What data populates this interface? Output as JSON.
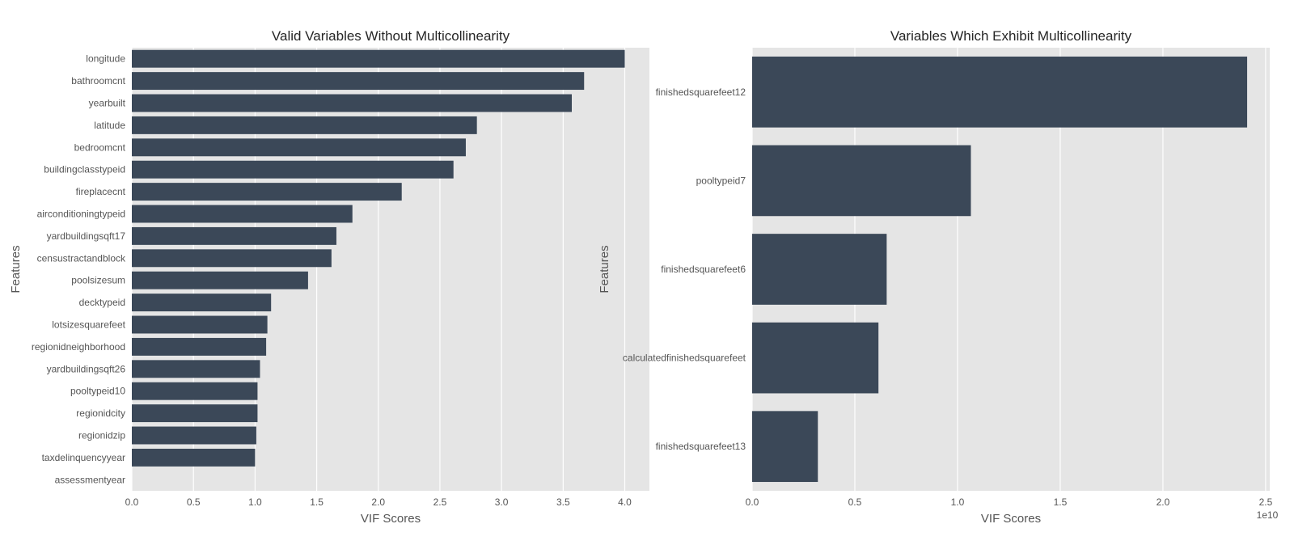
{
  "chart_data": [
    {
      "type": "bar",
      "orientation": "horizontal",
      "title": "Valid Variables Without Multicollinearity",
      "xlabel": "VIF Scores",
      "ylabel": "Features",
      "xlim": [
        0,
        4.2
      ],
      "xticks": [
        "0.0",
        "0.5",
        "1.0",
        "1.5",
        "2.0",
        "2.5",
        "3.0",
        "3.5",
        "4.0"
      ],
      "xtick_values": [
        0,
        0.5,
        1.0,
        1.5,
        2.0,
        2.5,
        3.0,
        3.5,
        4.0
      ],
      "x_offset_label": "",
      "grid": true,
      "bar_color": "#3b4858",
      "background": "#e5e5e5",
      "categories": [
        "longitude",
        "bathroomcnt",
        "yearbuilt",
        "latitude",
        "bedroomcnt",
        "buildingclasstypeid",
        "fireplacecnt",
        "airconditioningtypeid",
        "yardbuildingsqft17",
        "censustractandblock",
        "poolsizesum",
        "decktypeid",
        "lotsizesquarefeet",
        "regionidneighborhood",
        "yardbuildingsqft26",
        "pooltypeid10",
        "regionidcity",
        "regionidzip",
        "taxdelinquencyyear",
        "assessmentyear"
      ],
      "values": [
        4.0,
        3.67,
        3.57,
        2.8,
        2.71,
        2.61,
        2.19,
        1.79,
        1.66,
        1.62,
        1.43,
        1.13,
        1.1,
        1.09,
        1.04,
        1.02,
        1.02,
        1.01,
        1.0,
        0.0
      ]
    },
    {
      "type": "bar",
      "orientation": "horizontal",
      "title": "Variables Which Exhibit Multicollinearity",
      "xlabel": "VIF Scores",
      "ylabel": "Features",
      "xlim": [
        0,
        2.52
      ],
      "xticks": [
        "0.0",
        "0.5",
        "1.0",
        "1.5",
        "2.0",
        "2.5"
      ],
      "xtick_values": [
        0,
        0.5,
        1.0,
        1.5,
        2.0,
        2.5
      ],
      "x_offset_label": "1e10",
      "grid": true,
      "bar_color": "#3b4858",
      "background": "#e5e5e5",
      "categories": [
        "finishedsquarefeet12",
        "pooltypeid7",
        "finishedsquarefeet6",
        "calculatedfinishedsquarefeet",
        "finishedsquarefeet13"
      ],
      "values": [
        2.41,
        1.065,
        0.655,
        0.615,
        0.32
      ]
    }
  ]
}
